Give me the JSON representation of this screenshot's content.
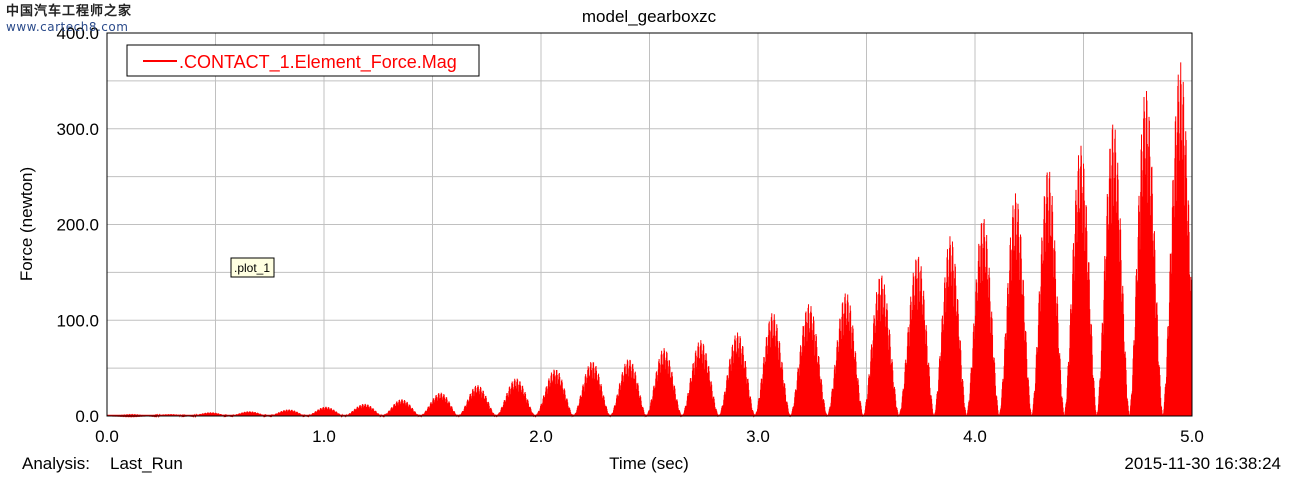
{
  "watermark": {
    "text_cn": "中国汽车工程师之家",
    "url": "www.cartech8.com"
  },
  "footer": {
    "analysis_label": "Analysis:",
    "analysis_value": "Last_Run",
    "timestamp": "2015-11-30 16:38:24"
  },
  "colors": {
    "series": "#ff0000",
    "grid": "#c0c0c0",
    "axis": "#000000"
  },
  "chart_data": {
    "type": "area",
    "title": "model_gearboxzc",
    "xlabel": "Time (sec)",
    "ylabel": "Force (newton)",
    "xlim": [
      0.0,
      5.0
    ],
    "ylim": [
      0.0,
      400.0
    ],
    "x_ticks": [
      "0.0",
      "1.0",
      "2.0",
      "3.0",
      "4.0",
      "5.0"
    ],
    "y_ticks": [
      "0.0",
      "100.0",
      "200.0",
      "300.0",
      "400.0"
    ],
    "grid": true,
    "legend_position": "top-left",
    "annotation": ".plot_1",
    "series": [
      {
        "name": ".CONTACT_1.Element_Force.Mag",
        "color": "#ff0000",
        "envelope_peaks": [
          {
            "x": 0.3,
            "y": 2
          },
          {
            "x": 0.49,
            "y": 4
          },
          {
            "x": 0.67,
            "y": 5
          },
          {
            "x": 0.85,
            "y": 7
          },
          {
            "x": 1.02,
            "y": 10
          },
          {
            "x": 1.2,
            "y": 13
          },
          {
            "x": 1.37,
            "y": 18
          },
          {
            "x": 1.55,
            "y": 25
          },
          {
            "x": 1.72,
            "y": 33
          },
          {
            "x": 1.9,
            "y": 40
          },
          {
            "x": 2.08,
            "y": 50
          },
          {
            "x": 2.25,
            "y": 58
          },
          {
            "x": 2.42,
            "y": 60
          },
          {
            "x": 2.58,
            "y": 72
          },
          {
            "x": 2.75,
            "y": 80
          },
          {
            "x": 2.92,
            "y": 88
          },
          {
            "x": 3.08,
            "y": 110
          },
          {
            "x": 3.25,
            "y": 118
          },
          {
            "x": 3.42,
            "y": 130
          },
          {
            "x": 3.58,
            "y": 150
          },
          {
            "x": 3.75,
            "y": 170
          },
          {
            "x": 3.9,
            "y": 190
          },
          {
            "x": 4.05,
            "y": 210
          },
          {
            "x": 4.2,
            "y": 235
          },
          {
            "x": 4.35,
            "y": 262
          },
          {
            "x": 4.5,
            "y": 285
          },
          {
            "x": 4.65,
            "y": 310
          },
          {
            "x": 4.8,
            "y": 345
          },
          {
            "x": 4.96,
            "y": 372
          }
        ]
      }
    ]
  }
}
